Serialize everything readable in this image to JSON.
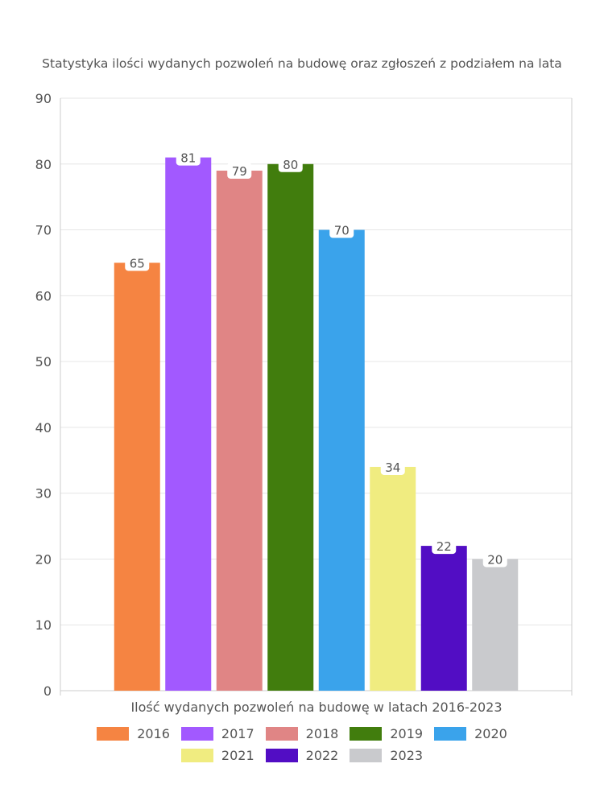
{
  "chart_data": {
    "type": "bar",
    "title": "Statystyka ilości wydanych pozwoleń na budowę oraz zgłoszeń z podziałem na lata",
    "xlabel": "Ilość wydanych pozwoleń na budowę w latach 2016-2023",
    "ylabel": "",
    "ylim": [
      0,
      90
    ],
    "yticks": [
      0,
      10,
      20,
      30,
      40,
      50,
      60,
      70,
      80,
      90
    ],
    "grid": true,
    "legend_position": "bottom",
    "series": [
      {
        "name": "2016",
        "value": 65,
        "color": "#f58442"
      },
      {
        "name": "2017",
        "value": 81,
        "color": "#a259ff"
      },
      {
        "name": "2018",
        "value": 79,
        "color": "#e08585"
      },
      {
        "name": "2019",
        "value": 80,
        "color": "#417d0d"
      },
      {
        "name": "2020",
        "value": 70,
        "color": "#3aa3eb"
      },
      {
        "name": "2021",
        "value": 34,
        "color": "#f0ec80"
      },
      {
        "name": "2022",
        "value": 22,
        "color": "#520dc4"
      },
      {
        "name": "2023",
        "value": 20,
        "color": "#c9cacd"
      }
    ]
  }
}
